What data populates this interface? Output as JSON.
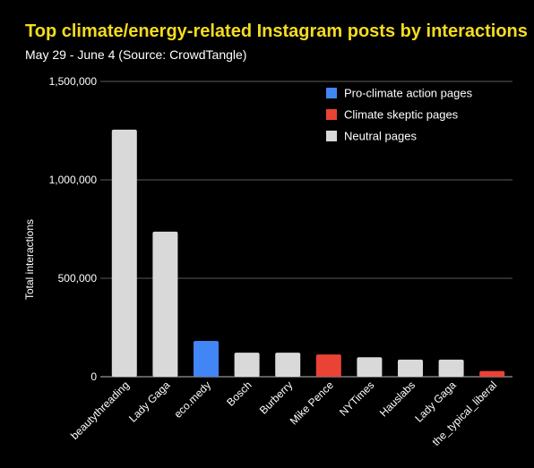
{
  "chart_data": {
    "type": "bar",
    "title": "Top climate/energy-related Instagram posts by interactions",
    "subtitle": "May 29 - June 4 (Source: CrowdTangle)",
    "xlabel": "",
    "ylabel": "Total interactions",
    "ylim": [
      0,
      1500000
    ],
    "yticks": [
      0,
      500000,
      1000000,
      1500000
    ],
    "ytick_labels": [
      "0",
      "500,000",
      "1,000,000",
      "1,500,000"
    ],
    "grid": true,
    "legend_position": "top-right",
    "categories": [
      "beautythreading",
      "Lady Gaga",
      "eco.medy",
      "Bosch",
      "Burberry",
      "Mike Pence",
      "NYTimes",
      "Hauslabs",
      "Lady Gaga",
      "the_typical_liberal"
    ],
    "values": [
      1255000,
      737000,
      182000,
      122000,
      122000,
      113000,
      99000,
      87000,
      87000,
      29000
    ],
    "groups": [
      "neutral",
      "neutral",
      "pro",
      "neutral",
      "neutral",
      "skeptic",
      "neutral",
      "neutral",
      "neutral",
      "skeptic"
    ],
    "legend": [
      {
        "key": "pro",
        "label": "Pro-climate action pages",
        "color": "#4285f4"
      },
      {
        "key": "skeptic",
        "label": "Climate skeptic pages",
        "color": "#ea4335"
      },
      {
        "key": "neutral",
        "label": "Neutral pages",
        "color": "#d9d9d9"
      }
    ]
  }
}
